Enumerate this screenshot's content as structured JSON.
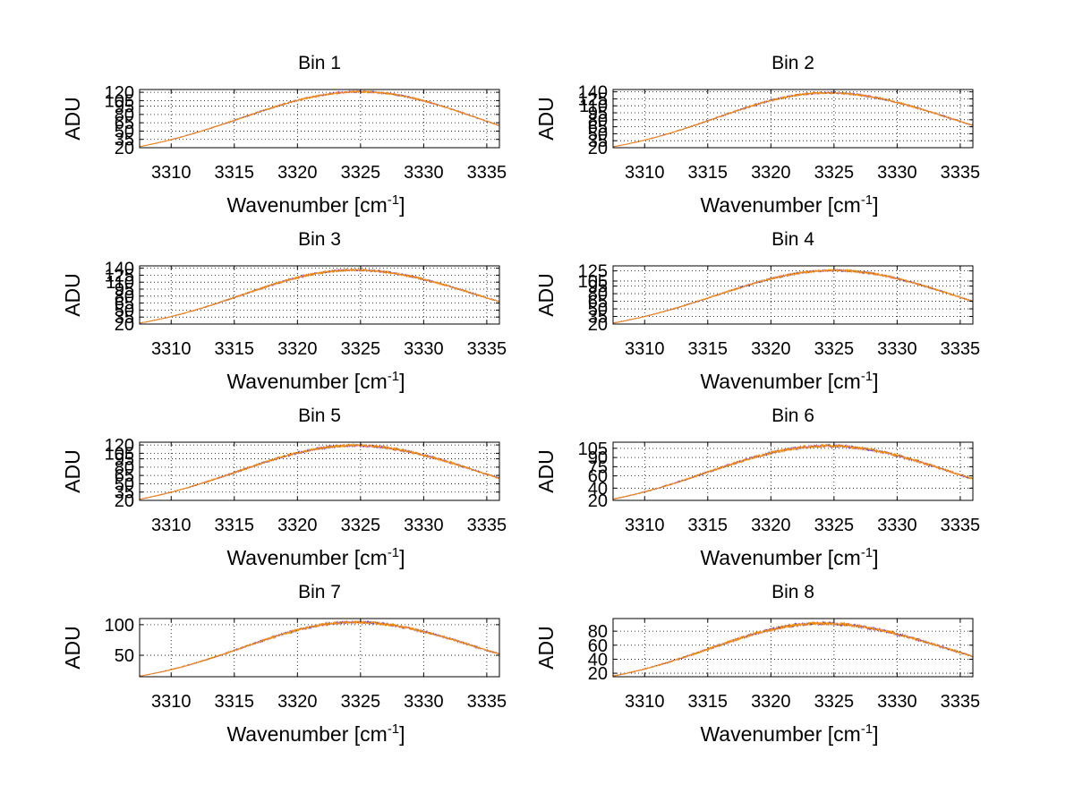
{
  "figure": {
    "background": "#ffffff"
  },
  "chart_data": [
    {
      "type": "line",
      "title": "Bin 1",
      "xlabel_main": "Wavenumber [cm",
      "xlabel_sup": "-1",
      "xlabel_close": "]",
      "ylabel": "ADU",
      "xlim": [
        3307.5,
        3336
      ],
      "ylim": [
        20,
        125
      ],
      "xticks": [
        3310,
        3315,
        3320,
        3325,
        3330,
        3335
      ],
      "yticks": [
        20,
        35,
        50,
        65,
        80,
        95,
        105,
        120
      ],
      "ytick_labels": [
        "20",
        "35",
        "50",
        "65",
        "80",
        "95",
        "105",
        "120"
      ],
      "grid": true,
      "profile": {
        "peak_x": 3325,
        "peak_y": 121,
        "left_x": 3307.5,
        "left_y": 22,
        "right_x": 3336,
        "right_y": 60,
        "noise": 1.5
      },
      "series": [
        {
          "color": "#ff8c00"
        },
        {
          "color": "#5b3fbf"
        }
      ]
    },
    {
      "type": "line",
      "title": "Bin 2",
      "xlabel_main": "Wavenumber [cm",
      "xlabel_sup": "-1",
      "xlabel_close": "]",
      "ylabel": "ADU",
      "xlim": [
        3307.5,
        3336
      ],
      "ylim": [
        20,
        145
      ],
      "xticks": [
        3310,
        3315,
        3320,
        3325,
        3330,
        3335
      ],
      "yticks": [
        20,
        35,
        50,
        65,
        80,
        95,
        110,
        125,
        140
      ],
      "ytick_labels": [
        "20",
        "35",
        "50",
        "65",
        "80",
        "95",
        "110",
        "125",
        "140"
      ],
      "grid": true,
      "profile": {
        "peak_x": 3324.5,
        "peak_y": 138,
        "left_x": 3307.5,
        "left_y": 22,
        "right_x": 3336,
        "right_y": 68,
        "noise": 2.0
      },
      "series": [
        {
          "color": "#ff8c00"
        },
        {
          "color": "#5b3fbf"
        }
      ]
    },
    {
      "type": "line",
      "title": "Bin 3",
      "xlabel_main": "Wavenumber [cm",
      "xlabel_sup": "-1",
      "xlabel_close": "]",
      "ylabel": "ADU",
      "xlim": [
        3307.5,
        3336
      ],
      "ylim": [
        20,
        145
      ],
      "xticks": [
        3310,
        3315,
        3320,
        3325,
        3330,
        3335
      ],
      "yticks": [
        20,
        35,
        50,
        65,
        80,
        95,
        110,
        125,
        140
      ],
      "ytick_labels": [
        "20",
        "35",
        "50",
        "65",
        "80",
        "95",
        "110",
        "125",
        "140"
      ],
      "grid": true,
      "profile": {
        "peak_x": 3324.5,
        "peak_y": 136,
        "left_x": 3307.5,
        "left_y": 22,
        "right_x": 3336,
        "right_y": 68,
        "noise": 2.2
      },
      "series": [
        {
          "color": "#ff8c00"
        },
        {
          "color": "#5b3fbf"
        }
      ]
    },
    {
      "type": "line",
      "title": "Bin 4",
      "xlabel_main": "Wavenumber [cm",
      "xlabel_sup": "-1",
      "xlabel_close": "]",
      "ylabel": "ADU",
      "xlim": [
        3307.5,
        3336
      ],
      "ylim": [
        20,
        135
      ],
      "xticks": [
        3310,
        3315,
        3320,
        3325,
        3330,
        3335
      ],
      "yticks": [
        20,
        35,
        50,
        65,
        80,
        95,
        105,
        125
      ],
      "ytick_labels": [
        "20",
        "35",
        "50",
        "65",
        "80",
        "95",
        "105",
        "125"
      ],
      "grid": true,
      "profile": {
        "peak_x": 3325,
        "peak_y": 126,
        "left_x": 3307.5,
        "left_y": 22,
        "right_x": 3336,
        "right_y": 65,
        "noise": 2.0
      },
      "series": [
        {
          "color": "#ff8c00"
        },
        {
          "color": "#5b3fbf"
        }
      ]
    },
    {
      "type": "line",
      "title": "Bin 5",
      "xlabel_main": "Wavenumber [cm",
      "xlabel_sup": "-1",
      "xlabel_close": "]",
      "ylabel": "ADU",
      "xlim": [
        3307.5,
        3336
      ],
      "ylim": [
        20,
        125
      ],
      "xticks": [
        3310,
        3315,
        3320,
        3325,
        3330,
        3335
      ],
      "yticks": [
        20,
        35,
        50,
        65,
        80,
        95,
        105,
        120
      ],
      "ytick_labels": [
        "20",
        "35",
        "50",
        "65",
        "80",
        "95",
        "105",
        "120"
      ],
      "grid": true,
      "profile": {
        "peak_x": 3324.5,
        "peak_y": 119,
        "left_x": 3307.5,
        "left_y": 22,
        "right_x": 3336,
        "right_y": 60,
        "noise": 2.2
      },
      "series": [
        {
          "color": "#ff8c00"
        },
        {
          "color": "#5b3fbf"
        }
      ]
    },
    {
      "type": "line",
      "title": "Bin 6",
      "xlabel_main": "Wavenumber [cm",
      "xlabel_sup": "-1",
      "xlabel_close": "]",
      "ylabel": "ADU",
      "xlim": [
        3307.5,
        3336
      ],
      "ylim": [
        20,
        115
      ],
      "xticks": [
        3310,
        3315,
        3320,
        3325,
        3330,
        3335
      ],
      "yticks": [
        20,
        40,
        60,
        75,
        90,
        105
      ],
      "ytick_labels": [
        "20",
        "40",
        "60",
        "75",
        "90",
        "105"
      ],
      "grid": true,
      "profile": {
        "peak_x": 3324.5,
        "peak_y": 109,
        "left_x": 3307.5,
        "left_y": 22,
        "right_x": 3336,
        "right_y": 55,
        "noise": 2.3
      },
      "series": [
        {
          "color": "#ff8c00"
        },
        {
          "color": "#5b3fbf"
        }
      ]
    },
    {
      "type": "line",
      "title": "Bin 7",
      "xlabel_main": "Wavenumber [cm",
      "xlabel_sup": "-1",
      "xlabel_close": "]",
      "ylabel": "ADU",
      "xlim": [
        3307.5,
        3336
      ],
      "ylim": [
        15,
        110
      ],
      "xticks": [
        3310,
        3315,
        3320,
        3325,
        3330,
        3335
      ],
      "yticks": [
        50,
        100
      ],
      "ytick_labels": [
        "50",
        "100"
      ],
      "grid": true,
      "profile": {
        "peak_x": 3324.5,
        "peak_y": 104,
        "left_x": 3307.5,
        "left_y": 16,
        "right_x": 3336,
        "right_y": 52,
        "noise": 2.0
      },
      "series": [
        {
          "color": "#ff8c00"
        },
        {
          "color": "#5b3fbf"
        }
      ]
    },
    {
      "type": "line",
      "title": "Bin 8",
      "xlabel_main": "Wavenumber [cm",
      "xlabel_sup": "-1",
      "xlabel_close": "]",
      "ylabel": "ADU",
      "xlim": [
        3307.5,
        3336
      ],
      "ylim": [
        15,
        98
      ],
      "xticks": [
        3310,
        3315,
        3320,
        3325,
        3330,
        3335
      ],
      "yticks": [
        20,
        40,
        60,
        80
      ],
      "ytick_labels": [
        "20",
        "40",
        "60",
        "80"
      ],
      "grid": true,
      "profile": {
        "peak_x": 3324,
        "peak_y": 91,
        "left_x": 3307.5,
        "left_y": 16,
        "right_x": 3336,
        "right_y": 44,
        "noise": 2.2
      },
      "series": [
        {
          "color": "#ff8c00"
        },
        {
          "color": "#5b3fbf"
        }
      ]
    }
  ]
}
